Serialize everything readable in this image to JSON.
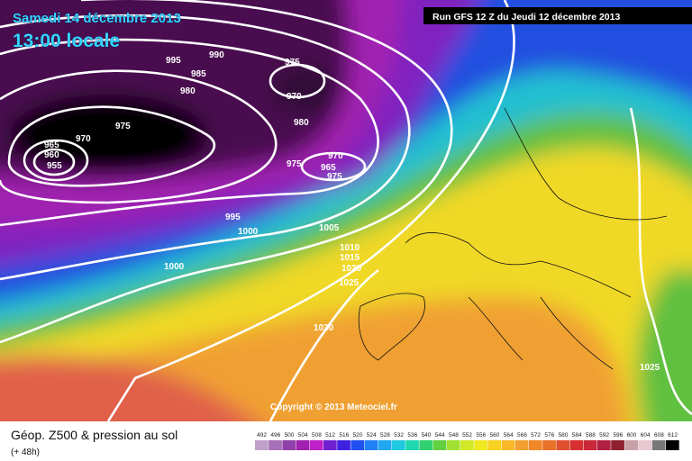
{
  "header": {
    "date": "Samedi 14 décembre 2013",
    "time": "13:00 locale",
    "run": "Run GFS 12 Z du Jeudi 12 décembre 2013"
  },
  "copyright": "Copyright © 2013 Meteociel.fr",
  "footer": {
    "title": "Géop. Z500 & pression au sol",
    "lead": "(+ 48h)"
  },
  "isobar_labels": [
    995,
    990,
    985,
    980,
    975,
    970,
    980,
    975,
    970,
    965,
    960,
    955,
    970,
    965,
    975,
    975,
    995,
    1000,
    1000,
    1005,
    1010,
    1015,
    1020,
    1025,
    1030,
    1025
  ],
  "scale": [
    492,
    496,
    500,
    504,
    508,
    512,
    516,
    520,
    524,
    528,
    532,
    536,
    540,
    544,
    548,
    552,
    556,
    560,
    564,
    568,
    572,
    576,
    580,
    584,
    588,
    592,
    596,
    600,
    604,
    608,
    612
  ]
}
